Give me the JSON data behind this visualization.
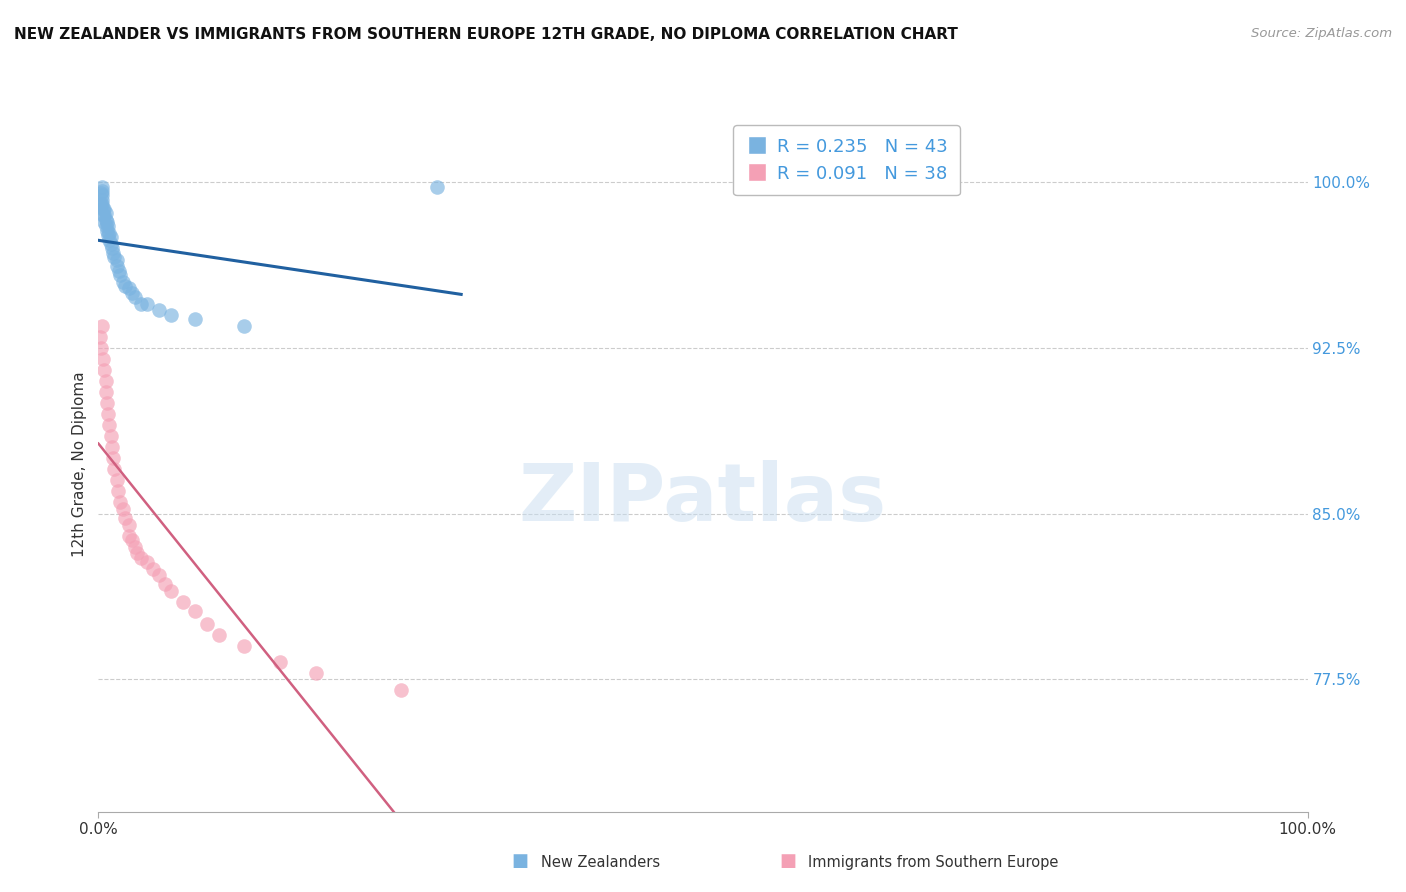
{
  "title": "NEW ZEALANDER VS IMMIGRANTS FROM SOUTHERN EUROPE 12TH GRADE, NO DIPLOMA CORRELATION CHART",
  "source_text": "Source: ZipAtlas.com",
  "ylabel": "12th Grade, No Diploma",
  "xlim": [
    0.0,
    1.0
  ],
  "ylim": [
    0.715,
    1.03
  ],
  "yticks": [
    0.775,
    0.85,
    0.925,
    1.0
  ],
  "ytick_labels": [
    "77.5%",
    "85.0%",
    "92.5%",
    "100.0%"
  ],
  "xticks": [
    0.0,
    1.0
  ],
  "xtick_labels": [
    "0.0%",
    "100.0%"
  ],
  "blue_R": 0.235,
  "blue_N": 43,
  "pink_R": 0.091,
  "pink_N": 38,
  "blue_color": "#7ab3e0",
  "pink_color": "#f4a0b5",
  "blue_line_color": "#2060a0",
  "pink_line_color": "#d06080",
  "legend_text_color": "#4499dd",
  "watermark": "ZIPatlas",
  "blue_scatter_x": [
    0.001,
    0.002,
    0.002,
    0.003,
    0.003,
    0.003,
    0.003,
    0.003,
    0.004,
    0.004,
    0.005,
    0.005,
    0.005,
    0.006,
    0.006,
    0.006,
    0.007,
    0.007,
    0.008,
    0.008,
    0.009,
    0.009,
    0.01,
    0.01,
    0.011,
    0.012,
    0.013,
    0.015,
    0.015,
    0.017,
    0.018,
    0.02,
    0.022,
    0.025,
    0.028,
    0.03,
    0.035,
    0.04,
    0.05,
    0.06,
    0.08,
    0.12,
    0.28
  ],
  "blue_scatter_y": [
    0.99,
    0.995,
    0.99,
    0.998,
    0.996,
    0.994,
    0.992,
    0.99,
    0.988,
    0.985,
    0.988,
    0.985,
    0.982,
    0.986,
    0.983,
    0.98,
    0.982,
    0.978,
    0.98,
    0.976,
    0.977,
    0.974,
    0.975,
    0.972,
    0.97,
    0.968,
    0.966,
    0.965,
    0.962,
    0.96,
    0.958,
    0.955,
    0.953,
    0.952,
    0.95,
    0.948,
    0.945,
    0.945,
    0.942,
    0.94,
    0.938,
    0.935,
    0.998
  ],
  "pink_scatter_x": [
    0.001,
    0.002,
    0.003,
    0.004,
    0.005,
    0.006,
    0.006,
    0.007,
    0.008,
    0.009,
    0.01,
    0.011,
    0.012,
    0.013,
    0.015,
    0.016,
    0.018,
    0.02,
    0.022,
    0.025,
    0.025,
    0.028,
    0.03,
    0.032,
    0.035,
    0.04,
    0.045,
    0.05,
    0.055,
    0.06,
    0.07,
    0.08,
    0.09,
    0.1,
    0.12,
    0.15,
    0.18,
    0.25
  ],
  "pink_scatter_y": [
    0.93,
    0.925,
    0.935,
    0.92,
    0.915,
    0.91,
    0.905,
    0.9,
    0.895,
    0.89,
    0.885,
    0.88,
    0.875,
    0.87,
    0.865,
    0.86,
    0.855,
    0.852,
    0.848,
    0.845,
    0.84,
    0.838,
    0.835,
    0.832,
    0.83,
    0.828,
    0.825,
    0.822,
    0.818,
    0.815,
    0.81,
    0.806,
    0.8,
    0.795,
    0.79,
    0.783,
    0.778,
    0.77
  ]
}
